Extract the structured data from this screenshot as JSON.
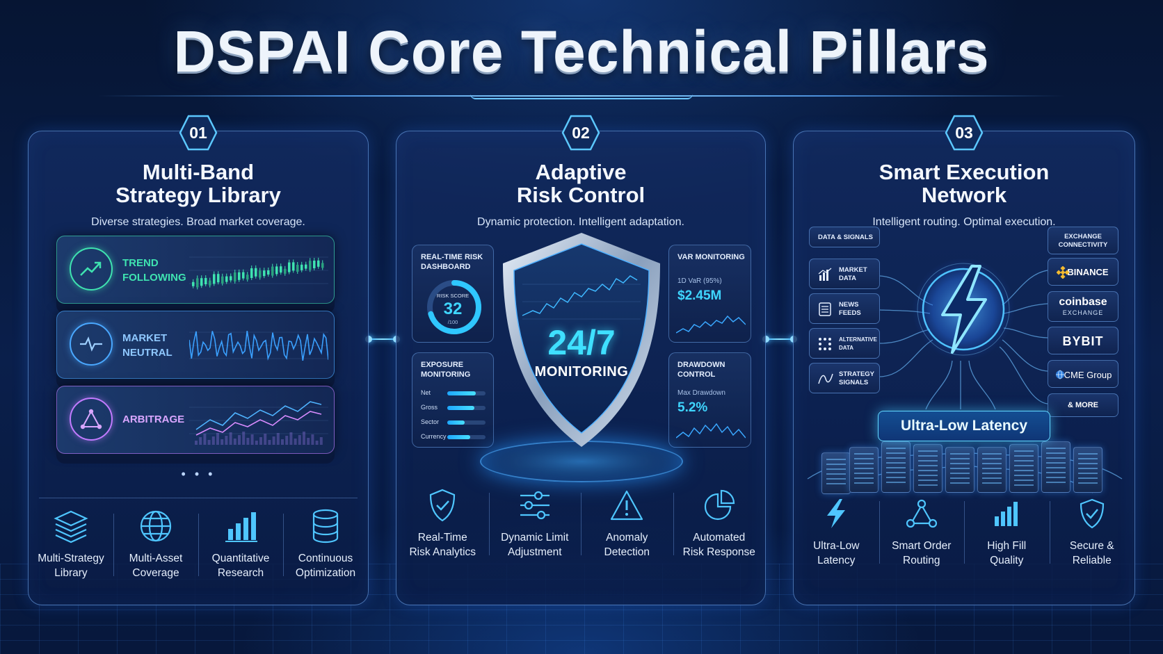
{
  "title": "DSPAI Core Technical Pillars",
  "colors": {
    "accent": "#3fd6ff",
    "trend": "#3fe3b0",
    "market": "#4aa8ff",
    "arbitrage": "#c27bff",
    "background": "#0a1f4b"
  },
  "pillars": [
    {
      "number": "01",
      "title_line1": "Multi-Band",
      "title_line2": "Strategy Library",
      "subtitle": "Diverse strategies. Broad market coverage.",
      "strategies": [
        {
          "label_line1": "TREND",
          "label_line2": "FOLLOWING",
          "icon": "trend-up-icon"
        },
        {
          "label_line1": "MARKET",
          "label_line2": "NEUTRAL",
          "icon": "pulse-icon"
        },
        {
          "label_line1": "ARBITRAGE",
          "label_line2": "",
          "icon": "triangle-nodes-icon"
        }
      ],
      "more": "• • •",
      "features": [
        {
          "line1": "Multi-Strategy",
          "line2": "Library",
          "icon": "layers-icon"
        },
        {
          "line1": "Multi-Asset",
          "line2": "Coverage",
          "icon": "globe-icon"
        },
        {
          "line1": "Quantitative",
          "line2": "Research",
          "icon": "bar-chart-icon"
        },
        {
          "line1": "Continuous",
          "line2": "Optimization",
          "icon": "database-icon"
        }
      ]
    },
    {
      "number": "02",
      "title_line1": "Adaptive",
      "title_line2": "Risk Control",
      "subtitle": "Dynamic protection. Intelligent adaptation.",
      "dashboard": {
        "title_line1": "REAL-TIME RISK",
        "title_line2": "DASHBOARD",
        "score_label": "RISK SCORE",
        "score": "32",
        "score_max": "/100",
        "score_fraction": 0.32
      },
      "exposure": {
        "title_line1": "EXPOSURE",
        "title_line2": "MONITORING",
        "rows": [
          {
            "label": "Net",
            "level": 0.75
          },
          {
            "label": "Gross",
            "level": 0.7
          },
          {
            "label": "Sector",
            "level": 0.45
          },
          {
            "label": "Currency",
            "level": 0.6
          }
        ]
      },
      "var": {
        "title": "VAR MONITORING",
        "label": "1D VaR (95%)",
        "value": "$2.45M"
      },
      "drawdown": {
        "title_line1": "DRAWDOWN",
        "title_line2": "CONTROL",
        "label": "Max Drawdown",
        "value": "5.2%"
      },
      "shield_big": "24/7",
      "shield_small": "MONITORING",
      "features": [
        {
          "line1": "Real-Time",
          "line2": "Risk Analytics",
          "icon": "shield-check-icon"
        },
        {
          "line1": "Dynamic Limit",
          "line2": "Adjustment",
          "icon": "sliders-icon"
        },
        {
          "line1": "Anomaly",
          "line2": "Detection",
          "icon": "warning-icon"
        },
        {
          "line1": "Automated",
          "line2": "Risk Response",
          "icon": "pie-chart-icon"
        }
      ]
    },
    {
      "number": "03",
      "title_line1": "Smart Execution",
      "title_line2": "Network",
      "subtitle": "Intelligent routing. Optimal execution.",
      "data_header": "DATA & SIGNALS",
      "data_sources": [
        {
          "line1": "MARKET",
          "line2": "DATA",
          "icon": "bar-chart-icon"
        },
        {
          "line1": "NEWS",
          "line2": "FEEDS",
          "icon": "news-icon"
        },
        {
          "line1": "ALTERNATIVE",
          "line2": "DATA",
          "icon": "dots-grid-icon"
        },
        {
          "line1": "STRATEGY",
          "line2": "SIGNALS",
          "icon": "signal-icon"
        }
      ],
      "exchange_header_line1": "EXCHANGE",
      "exchange_header_line2": "CONNECTIVITY",
      "exchanges": [
        {
          "name": "BINANCE",
          "sub": "",
          "icon": "binance-icon"
        },
        {
          "name": "coinbase",
          "sub": "EXCHANGE",
          "icon": ""
        },
        {
          "name": "BYBIT",
          "sub": "",
          "icon": ""
        },
        {
          "name": "CME Group",
          "sub": "",
          "icon": "globe-icon"
        },
        {
          "name": "& MORE",
          "sub": "",
          "icon": ""
        }
      ],
      "latency_label": "Ultra-Low Latency",
      "features": [
        {
          "line1": "Ultra-Low",
          "line2": "Latency",
          "icon": "lightning-icon"
        },
        {
          "line1": "Smart Order",
          "line2": "Routing",
          "icon": "routing-icon"
        },
        {
          "line1": "High Fill",
          "line2": "Quality",
          "icon": "bar-chart-icon"
        },
        {
          "line1": "Secure &",
          "line2": "Reliable",
          "icon": "shield-check-icon"
        }
      ]
    }
  ]
}
